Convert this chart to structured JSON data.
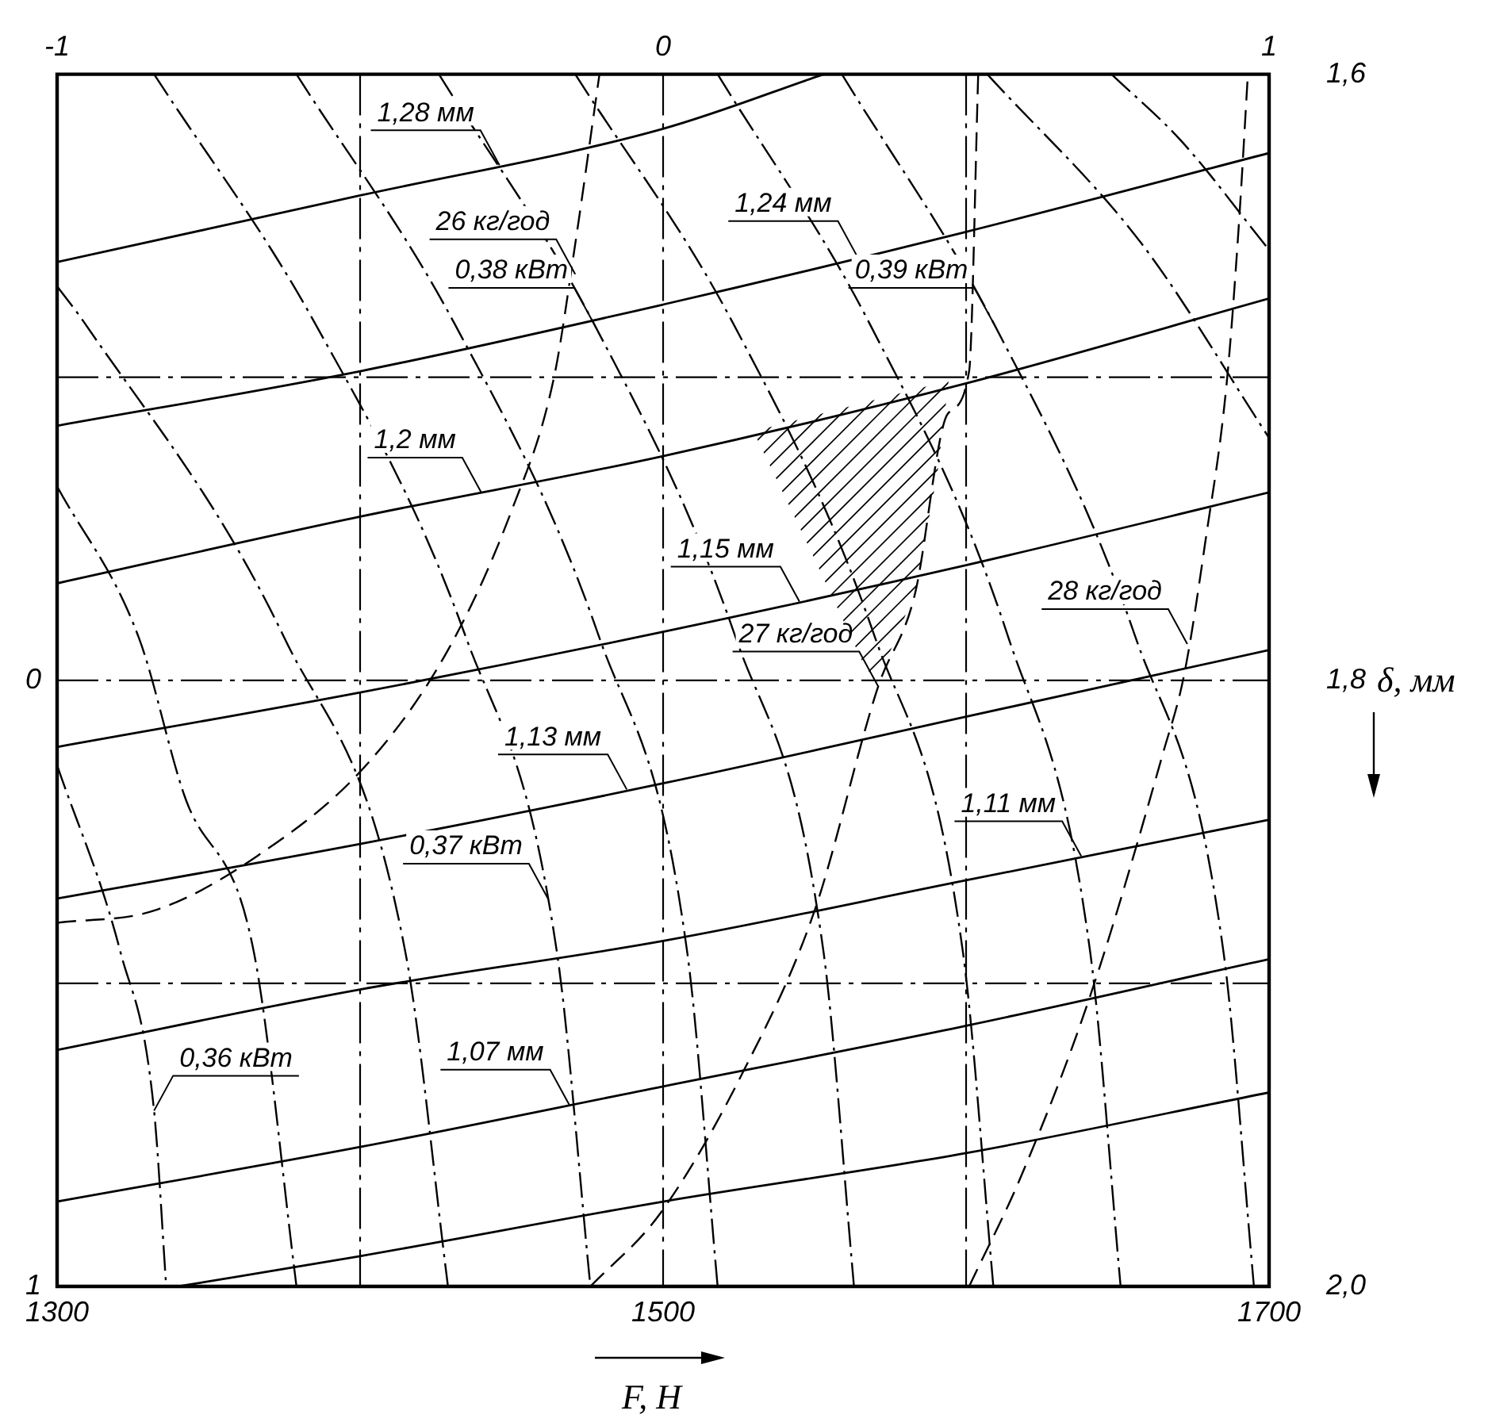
{
  "chart_data": {
    "type": "line",
    "xlabel": "F, Н",
    "y2label": "δ, мм",
    "xlim": [
      1300,
      1700
    ],
    "xticks": [
      1300,
      {
        "value": 1400,
        "label": null
      },
      1500,
      {
        "value": 1600,
        "label": null
      },
      1700
    ],
    "ylim": [
      1,
      -1
    ],
    "yticks": [
      {
        "value": -0.5,
        "label": null
      },
      0,
      {
        "value": 0.5,
        "label": null
      },
      1
    ],
    "x2lim": [
      -1,
      1
    ],
    "x2ticks": [
      -1,
      0,
      1
    ],
    "y2lim": [
      2.0,
      1.6
    ],
    "y2ticks": [
      {
        "value": 1.6,
        "label": "1,6"
      },
      {
        "value": 1.8,
        "label": "1,8"
      },
      {
        "value": 2.0,
        "label": "2,0"
      }
    ],
    "grid": true,
    "legend": false,
    "marker": "none",
    "series": [
      {
        "color": "#000000",
        "line_style": "solid",
        "x": [
          1300,
          1400,
          1500,
          1553
        ],
        "values": [
          -0.69,
          -0.8,
          -0.91,
          -1
        ]
      },
      {
        "color": "#000000",
        "line_style": "solid",
        "x": [
          1300,
          1400,
          1500,
          1600,
          1700
        ],
        "values": [
          -0.42,
          -0.51,
          -0.62,
          -0.74,
          -0.87
        ]
      },
      {
        "color": "#000000",
        "line_style": "solid",
        "x": [
          1300,
          1400,
          1500,
          1600,
          1700
        ],
        "values": [
          -0.16,
          -0.27,
          -0.37,
          -0.49,
          -0.63
        ]
      },
      {
        "color": "#000000",
        "line_style": "solid",
        "x": [
          1300,
          1400,
          1500,
          1600,
          1700
        ],
        "values": [
          0.11,
          0.02,
          -0.08,
          -0.19,
          -0.31
        ]
      },
      {
        "color": "#000000",
        "line_style": "solid",
        "x": [
          1300,
          1400,
          1500,
          1600,
          1700
        ],
        "values": [
          0.36,
          0.27,
          0.17,
          0.06,
          -0.05
        ]
      },
      {
        "color": "#000000",
        "line_style": "solid",
        "x": [
          1300,
          1400,
          1500,
          1600,
          1700
        ],
        "values": [
          0.61,
          0.51,
          0.43,
          0.33,
          0.23
        ]
      },
      {
        "color": "#000000",
        "line_style": "solid",
        "x": [
          1300,
          1400,
          1500,
          1600,
          1700
        ],
        "values": [
          0.86,
          0.77,
          0.67,
          0.57,
          0.46
        ]
      },
      {
        "color": "#000000",
        "line_style": "solid",
        "x": [
          1340,
          1400,
          1500,
          1600,
          1700
        ],
        "values": [
          1,
          0.95,
          0.86,
          0.78,
          0.68
        ]
      },
      {
        "color": "#000000",
        "line_style": "dashdot",
        "x": [
          1300,
          1321,
          1332,
          1336
        ],
        "values": [
          0.14,
          0.45,
          0.71,
          1
        ]
      },
      {
        "color": "#000000",
        "line_style": "dashdot",
        "x": [
          1300,
          1327,
          1342,
          1365,
          1379
        ],
        "values": [
          -0.32,
          -0.07,
          0.19,
          0.45,
          1
        ]
      },
      {
        "color": "#000000",
        "line_style": "dashdot",
        "x": [
          1300,
          1309,
          1375,
          1415,
          1429
        ],
        "values": [
          -0.65,
          -0.59,
          -0.07,
          0.45,
          1
        ]
      },
      {
        "color": "#000000",
        "line_style": "dashdot",
        "x": [
          1332,
          1385,
          1435,
          1465,
          1476
        ],
        "values": [
          -1,
          -0.59,
          -0.07,
          0.45,
          1
        ]
      },
      {
        "color": "#000000",
        "line_style": "dashdot",
        "x": [
          1379,
          1431,
          1479,
          1508,
          1518
        ],
        "values": [
          -1,
          -0.59,
          -0.07,
          0.45,
          1
        ]
      },
      {
        "color": "#000000",
        "line_style": "dashdot",
        "x": [
          1426,
          1477,
          1524,
          1553,
          1563
        ],
        "values": [
          -1,
          -0.59,
          -0.07,
          0.45,
          1
        ]
      },
      {
        "color": "#000000",
        "line_style": "dashdot",
        "x": [
          1471,
          1523,
          1570,
          1599,
          1609
        ],
        "values": [
          -1,
          -0.59,
          -0.07,
          0.45,
          1
        ]
      },
      {
        "color": "#000000",
        "line_style": "dashdot",
        "x": [
          1518,
          1568,
          1614,
          1641,
          1651
        ],
        "values": [
          -1,
          -0.59,
          -0.07,
          0.45,
          1
        ]
      },
      {
        "color": "#000000",
        "line_style": "dashdot",
        "x": [
          1559,
          1609,
          1656,
          1685,
          1695
        ],
        "values": [
          -1,
          -0.59,
          -0.07,
          0.45,
          1
        ]
      },
      {
        "color": "#000000",
        "line_style": "dashdot",
        "x": [
          1607,
          1658,
          1700
        ],
        "values": [
          -1,
          -0.72,
          -0.4
        ]
      },
      {
        "color": "#000000",
        "line_style": "dashdot",
        "x": [
          1648,
          1671,
          1700
        ],
        "values": [
          -1,
          -0.89,
          -0.71
        ]
      },
      {
        "color": "#000000",
        "line_style": "dashed",
        "x": [
          1300,
          1332,
          1366,
          1402,
          1429,
          1450,
          1464,
          1471,
          1479
        ],
        "values": [
          0.4,
          0.38,
          0.29,
          0.14,
          -0.05,
          -0.28,
          -0.5,
          -0.72,
          -1
        ]
      },
      {
        "color": "#000000",
        "line_style": "dashed",
        "x": [
          1476,
          1499,
          1526,
          1550,
          1571,
          1583,
          1594,
          1601,
          1604
        ],
        "values": [
          1,
          0.88,
          0.65,
          0.38,
          0.01,
          -0.14,
          -0.44,
          -0.51,
          -1
        ]
      },
      {
        "color": "#000000",
        "line_style": "dashed",
        "x": [
          1601,
          1618,
          1641,
          1665,
          1672,
          1679,
          1686,
          1690,
          1693
        ],
        "values": [
          1,
          0.82,
          0.52,
          0.12,
          -0.01,
          -0.23,
          -0.49,
          -0.75,
          -1
        ]
      }
    ],
    "annotations": [
      {
        "text": "1,28 мм",
        "x": 1446,
        "y": -0.85
      },
      {
        "text": "1,24 мм",
        "x": 1564,
        "y": -0.7
      },
      {
        "text": "1,2 мм",
        "x": 1440,
        "y": -0.31
      },
      {
        "text": "1,15 мм",
        "x": 1545,
        "y": -0.13
      },
      {
        "text": "1,13 мм",
        "x": 1488,
        "y": 0.18
      },
      {
        "text": "1,11 мм",
        "x": 1638,
        "y": 0.29
      },
      {
        "text": "1,07 мм",
        "x": 1469,
        "y": 0.7
      },
      {
        "text": "0,36 кВт",
        "x": 1332,
        "y": 0.71
      },
      {
        "text": "0,37 кВт",
        "x": 1462,
        "y": 0.36
      },
      {
        "text": "0,38 кВт",
        "x": 1477,
        "y": -0.59
      },
      {
        "text": "0,39 кВт",
        "x": 1609,
        "y": -0.59
      },
      {
        "text": "26 кг/год",
        "x": 1471,
        "y": -0.67
      },
      {
        "text": "27 кг/год",
        "x": 1571,
        "y": 0.01
      },
      {
        "text": "28 кг/год",
        "x": 1673,
        "y": -0.06
      }
    ]
  }
}
